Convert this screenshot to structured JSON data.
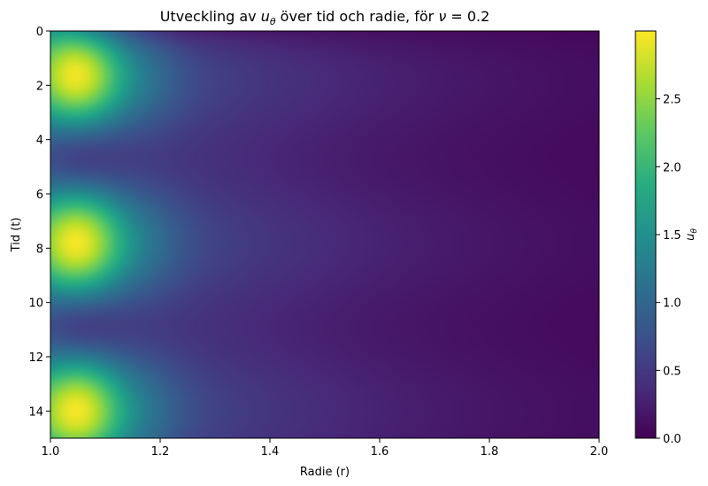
{
  "chart_data": {
    "type": "heatmap",
    "title": {
      "prefix": "Utveckling av ",
      "var_main": "u",
      "var_sub": "θ",
      "middle": " över tid och radie, för ",
      "nu_symbol": "ν",
      "suffix": " = 0.2"
    },
    "xlabel": "Radie (r)",
    "ylabel": "Tid (t)",
    "xlim": [
      1.0,
      2.0
    ],
    "ylim": [
      15,
      0
    ],
    "x_ticks": [
      1.0,
      1.2,
      1.4,
      1.6,
      1.8,
      2.0
    ],
    "x_tick_labels": [
      "1.0",
      "1.2",
      "1.4",
      "1.6",
      "1.8",
      "2.0"
    ],
    "y_ticks": [
      0,
      2,
      4,
      6,
      8,
      10,
      12,
      14
    ],
    "y_tick_labels": [
      "0",
      "2",
      "4",
      "6",
      "8",
      "10",
      "12",
      "14"
    ],
    "colormap": "viridis",
    "colorbar": {
      "label_main": "u",
      "label_sub": "θ",
      "range": [
        0.0,
        3.0
      ],
      "ticks": [
        0.0,
        0.5,
        1.0,
        1.5,
        2.0,
        2.5
      ],
      "tick_labels": [
        "0.0",
        "0.5",
        "1.0",
        "1.5",
        "2.0",
        "2.5"
      ]
    },
    "grid": false,
    "peak": {
      "r": 1.05,
      "t_values": [
        1.6,
        7.8,
        14.1
      ],
      "max_value": 3.0
    },
    "sample_values": {
      "r": [
        1.05,
        1.2,
        1.4,
        1.6,
        1.8,
        2.0
      ],
      "t_peak": [
        3.0,
        1.7,
        0.55,
        0.35,
        0.22,
        0.15
      ],
      "t_trough": [
        0.95,
        0.8,
        0.5,
        0.3,
        0.2,
        0.12
      ]
    }
  }
}
